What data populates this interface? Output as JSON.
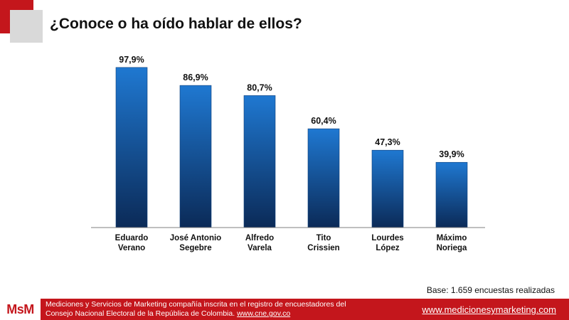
{
  "title": "¿Conoce o ha oído hablar de ellos?",
  "chart_data": {
    "type": "bar",
    "categories": [
      [
        "Eduardo",
        "Verano"
      ],
      [
        "José Antonio",
        "Segebre"
      ],
      [
        "Alfredo",
        "Varela"
      ],
      [
        "Tito",
        "Crissien"
      ],
      [
        "Lourdes",
        "López"
      ],
      [
        "Máximo",
        "Noriega"
      ]
    ],
    "values": [
      97.9,
      86.9,
      80.7,
      60.4,
      47.3,
      39.9
    ],
    "value_labels": [
      "97,9%",
      "86,9%",
      "80,7%",
      "60,4%",
      "47,3%",
      "39,9%"
    ],
    "ylim": [
      0,
      100
    ],
    "grid": false,
    "bar_color_top": "#1f78d1",
    "bar_color_bottom": "#0b2a57"
  },
  "base_note": "Base: 1.659 encuestas realizadas",
  "footer": {
    "logo": "MsM",
    "line1": "Mediciones y Servicios de Marketing compañía inscrita en el registro de encuestadores del",
    "line2_prefix": "Consejo Nacional Electoral  de la República de Colombia. ",
    "line2_link": "www.cne.gov.co",
    "url": "www.medicionesymarketing.com",
    "color": "#c4161c"
  }
}
